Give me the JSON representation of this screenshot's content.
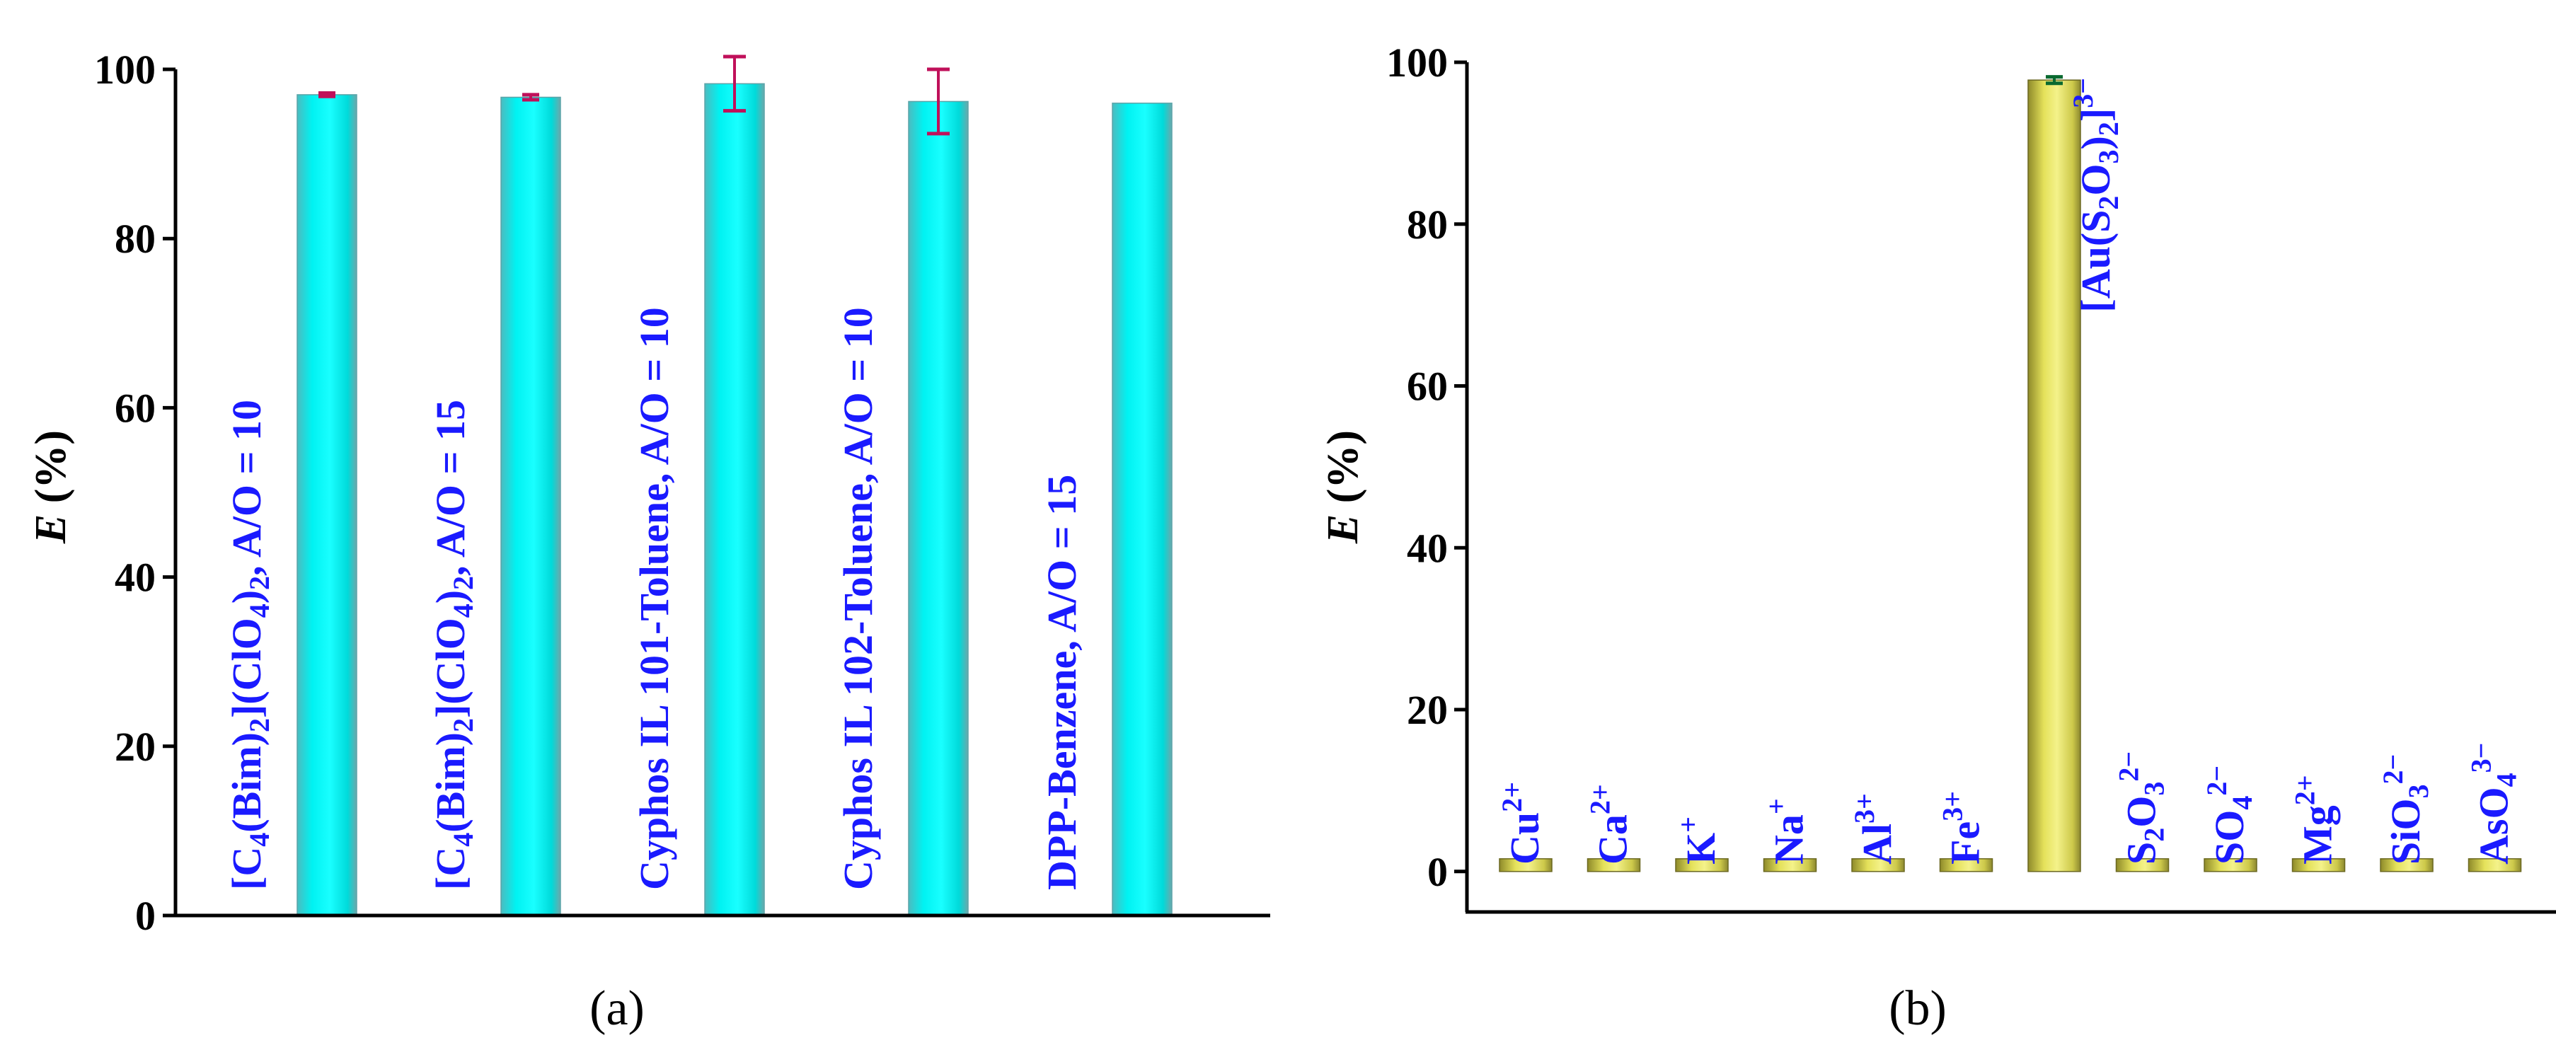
{
  "colors": {
    "bar_a": "#00e8e8",
    "bar_b": "#e2e25a",
    "error_a": "#c0105a",
    "error_b": "#0a6a30",
    "label": "#1a1aff",
    "axis": "#000000"
  },
  "chart_data": [
    {
      "type": "bar",
      "panel_label": "(a)",
      "ylabel": "E (%)",
      "ylabel_italic": "E",
      "ylabel_rest": " (%)",
      "ylim": [
        0,
        100
      ],
      "yticks": [
        0,
        20,
        40,
        60,
        80,
        100
      ],
      "grid": false,
      "label_orientation": "vertical",
      "categories": [
        [
          {
            "t": "[C"
          },
          {
            "t": "4",
            "s": "sub"
          },
          {
            "t": "(Bim)"
          },
          {
            "t": "2",
            "s": "sub"
          },
          {
            "t": "](ClO"
          },
          {
            "t": "4",
            "s": "sub"
          },
          {
            "t": ")"
          },
          {
            "t": "2",
            "s": "sub"
          },
          {
            "t": ", A/O = 10"
          }
        ],
        [
          {
            "t": "[C"
          },
          {
            "t": "4",
            "s": "sub"
          },
          {
            "t": "(Bim)"
          },
          {
            "t": "2",
            "s": "sub"
          },
          {
            "t": "](ClO"
          },
          {
            "t": "4",
            "s": "sub"
          },
          {
            "t": ")"
          },
          {
            "t": "2",
            "s": "sub"
          },
          {
            "t": ", A/O = 15"
          }
        ],
        [
          {
            "t": "Cyphos IL 101-Toluene, A/O = 10"
          }
        ],
        [
          {
            "t": "Cyphos IL 102-Toluene, A/O = 10"
          }
        ],
        [
          {
            "t": "DPP-Benzene, A/O = 15"
          }
        ]
      ],
      "values": [
        97.0,
        96.7,
        98.3,
        96.2,
        96.0
      ],
      "errors": [
        0.2,
        0.3,
        3.2,
        3.8,
        0
      ]
    },
    {
      "type": "bar",
      "panel_label": "(b)",
      "ylabel": "E (%)",
      "ylabel_italic": "E",
      "ylabel_rest": " (%)",
      "ylim": [
        -5,
        100
      ],
      "yticks": [
        0,
        20,
        40,
        60,
        80,
        100
      ],
      "grid": false,
      "label_orientation": "vertical",
      "categories": [
        [
          {
            "t": "Cu"
          },
          {
            "t": "2+",
            "s": "sup"
          }
        ],
        [
          {
            "t": "Ca"
          },
          {
            "t": "2+",
            "s": "sup"
          }
        ],
        [
          {
            "t": "K"
          },
          {
            "t": "+",
            "s": "sup"
          }
        ],
        [
          {
            "t": "Na"
          },
          {
            "t": "+",
            "s": "sup"
          }
        ],
        [
          {
            "t": "Al"
          },
          {
            "t": "3+",
            "s": "sup"
          }
        ],
        [
          {
            "t": "Fe"
          },
          {
            "t": "3+",
            "s": "sup"
          }
        ],
        [
          {
            "t": "[Au(S"
          },
          {
            "t": "2",
            "s": "sub"
          },
          {
            "t": "O"
          },
          {
            "t": "3",
            "s": "sub"
          },
          {
            "t": ")"
          },
          {
            "t": "2",
            "s": "sub"
          },
          {
            "t": "]"
          },
          {
            "t": "3−",
            "s": "sup"
          }
        ],
        [
          {
            "t": "S"
          },
          {
            "t": "2",
            "s": "sub"
          },
          {
            "t": "O"
          },
          {
            "t": "3",
            "s": "sub"
          },
          {
            "t": "2−",
            "s": "sup"
          }
        ],
        [
          {
            "t": "SO"
          },
          {
            "t": "4",
            "s": "sub"
          },
          {
            "t": "2−",
            "s": "sup"
          }
        ],
        [
          {
            "t": "Mg"
          },
          {
            "t": "2+",
            "s": "sup"
          }
        ],
        [
          {
            "t": "SiO"
          },
          {
            "t": "3",
            "s": "sub"
          },
          {
            "t": "2−",
            "s": "sup"
          }
        ],
        [
          {
            "t": "AsO"
          },
          {
            "t": "4",
            "s": "sub"
          },
          {
            "t": "3−",
            "s": "sup"
          }
        ]
      ],
      "values": [
        0,
        0,
        0,
        0,
        0,
        0,
        97.8,
        0,
        0,
        0,
        0,
        0
      ],
      "errors": [
        0,
        0,
        0,
        0,
        0,
        0,
        0.4,
        0,
        0,
        0,
        0,
        0
      ]
    }
  ]
}
